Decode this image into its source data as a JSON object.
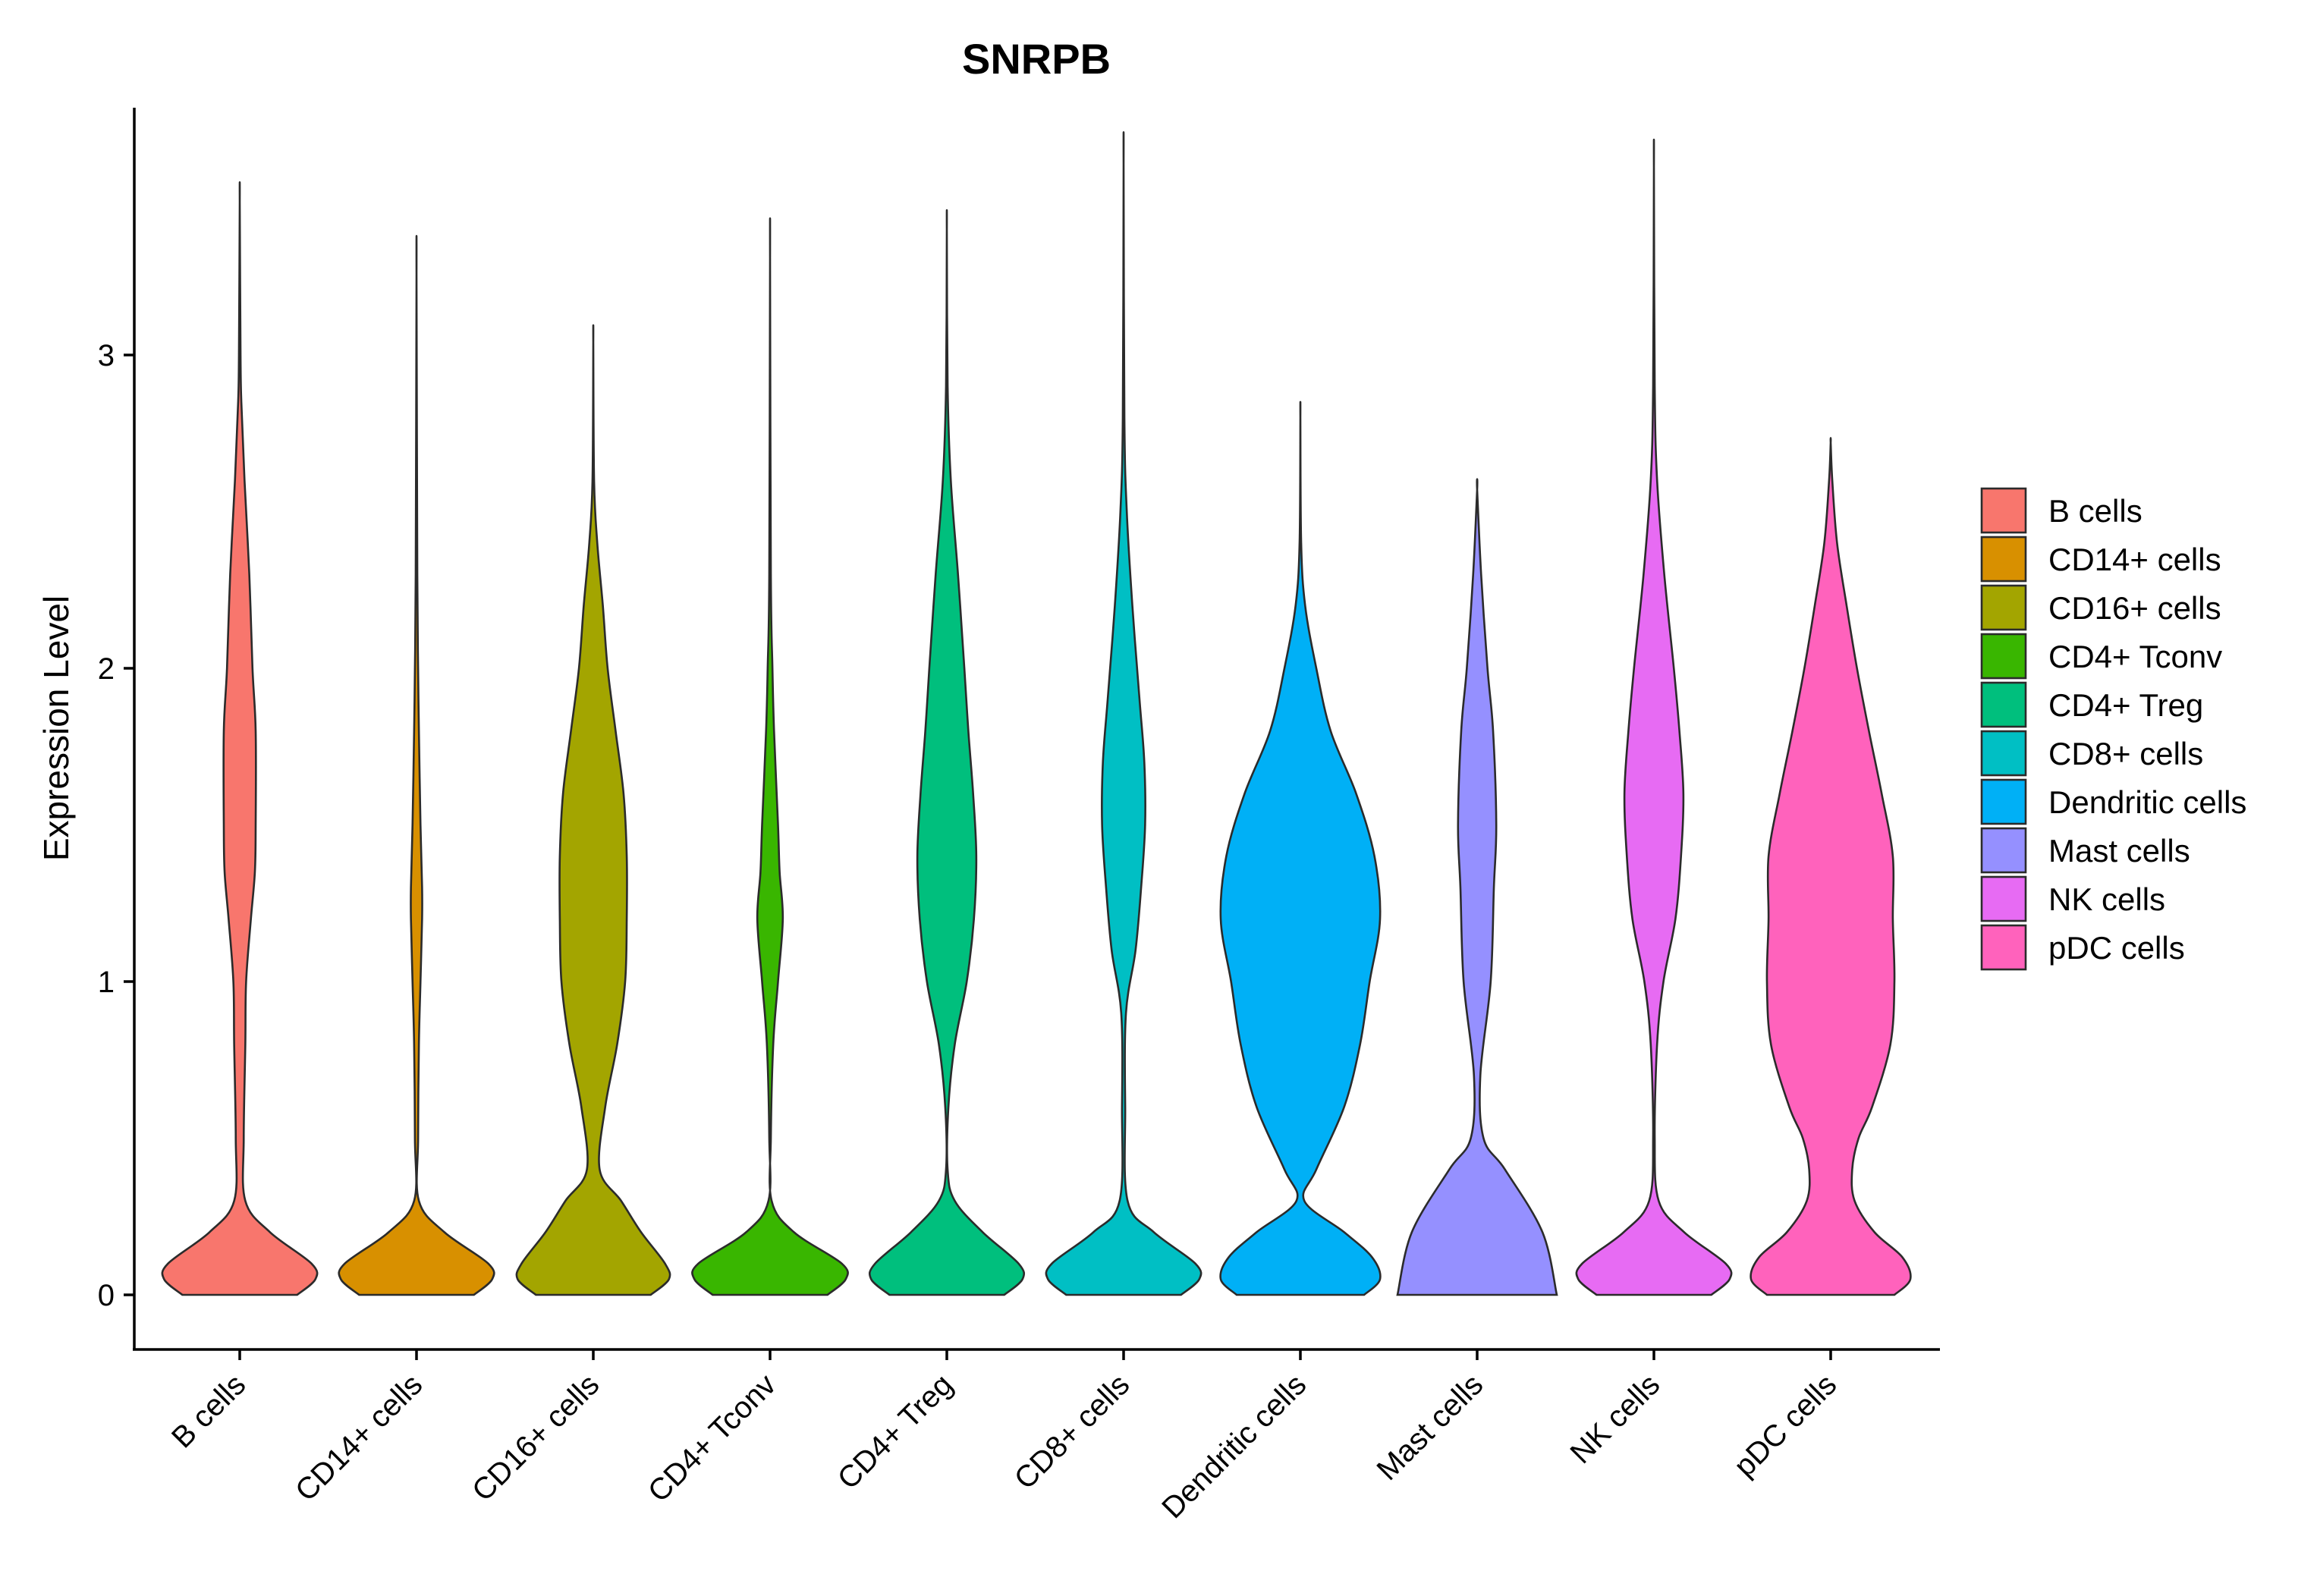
{
  "chart_data": {
    "type": "violin",
    "title": "SNRPB",
    "xlabel": "",
    "ylabel": "Expression Level",
    "ylim": [
      -0.18,
      3.8
    ],
    "yticks": [
      0,
      1,
      2,
      3
    ],
    "categories": [
      "B cells",
      "CD14+ cells",
      "CD16+ cells",
      "CD4+ Tconv",
      "CD4+ Treg",
      "CD8+ cells",
      "Dendritic cells",
      "Mast cells",
      "NK cells",
      "pDC cells"
    ],
    "legend_title": "",
    "legend_position": "right",
    "series": [
      {
        "name": "B cells",
        "color": "#F8766D",
        "max": 3.49,
        "profile": [
          [
            0,
            0.72
          ],
          [
            0.05,
            0.95
          ],
          [
            0.1,
            0.9
          ],
          [
            0.2,
            0.38
          ],
          [
            0.3,
            0.07
          ],
          [
            0.5,
            0.05
          ],
          [
            0.8,
            0.07
          ],
          [
            1.0,
            0.08
          ],
          [
            1.2,
            0.14
          ],
          [
            1.35,
            0.19
          ],
          [
            1.5,
            0.2
          ],
          [
            1.8,
            0.2
          ],
          [
            2.0,
            0.16
          ],
          [
            2.3,
            0.12
          ],
          [
            2.6,
            0.06
          ],
          [
            2.85,
            0.02
          ],
          [
            3.0,
            0.01
          ],
          [
            3.49,
            0.0
          ]
        ]
      },
      {
        "name": "CD14+ cells",
        "color": "#D89000",
        "max": 3.26,
        "profile": [
          [
            0,
            0.72
          ],
          [
            0.05,
            0.95
          ],
          [
            0.1,
            0.9
          ],
          [
            0.2,
            0.35
          ],
          [
            0.3,
            0.03
          ],
          [
            0.5,
            0.02
          ],
          [
            0.8,
            0.03
          ],
          [
            1.0,
            0.05
          ],
          [
            1.2,
            0.07
          ],
          [
            1.3,
            0.07
          ],
          [
            1.5,
            0.05
          ],
          [
            1.8,
            0.03
          ],
          [
            2.0,
            0.02
          ],
          [
            2.3,
            0.01
          ],
          [
            3.26,
            0.0
          ]
        ]
      },
      {
        "name": "CD16+ cells",
        "color": "#A3A500",
        "max": 3.04,
        "profile": [
          [
            0,
            0.72
          ],
          [
            0.05,
            0.95
          ],
          [
            0.1,
            0.9
          ],
          [
            0.2,
            0.6
          ],
          [
            0.3,
            0.35
          ],
          [
            0.4,
            0.08
          ],
          [
            0.6,
            0.15
          ],
          [
            0.8,
            0.3
          ],
          [
            1.0,
            0.4
          ],
          [
            1.2,
            0.42
          ],
          [
            1.4,
            0.42
          ],
          [
            1.6,
            0.38
          ],
          [
            1.8,
            0.28
          ],
          [
            2.0,
            0.18
          ],
          [
            2.2,
            0.12
          ],
          [
            2.4,
            0.05
          ],
          [
            2.6,
            0.01
          ],
          [
            3.04,
            0.0
          ]
        ]
      },
      {
        "name": "CD4+ Tconv",
        "color": "#39B600",
        "max": 3.31,
        "profile": [
          [
            0,
            0.72
          ],
          [
            0.05,
            0.95
          ],
          [
            0.1,
            0.9
          ],
          [
            0.2,
            0.3
          ],
          [
            0.3,
            0.02
          ],
          [
            0.5,
            0.01
          ],
          [
            0.8,
            0.04
          ],
          [
            1.0,
            0.1
          ],
          [
            1.2,
            0.16
          ],
          [
            1.35,
            0.12
          ],
          [
            1.5,
            0.1
          ],
          [
            1.8,
            0.05
          ],
          [
            2.0,
            0.03
          ],
          [
            2.3,
            0.01
          ],
          [
            3.31,
            0.0
          ]
        ]
      },
      {
        "name": "CD4+ Treg",
        "color": "#00BF7D",
        "max": 3.4,
        "profile": [
          [
            0,
            0.72
          ],
          [
            0.05,
            0.95
          ],
          [
            0.1,
            0.9
          ],
          [
            0.2,
            0.45
          ],
          [
            0.3,
            0.1
          ],
          [
            0.4,
            0.01
          ],
          [
            0.6,
            0.02
          ],
          [
            0.8,
            0.1
          ],
          [
            1.0,
            0.25
          ],
          [
            1.2,
            0.34
          ],
          [
            1.4,
            0.37
          ],
          [
            1.6,
            0.33
          ],
          [
            1.8,
            0.27
          ],
          [
            2.0,
            0.22
          ],
          [
            2.3,
            0.14
          ],
          [
            2.6,
            0.05
          ],
          [
            2.9,
            0.01
          ],
          [
            3.4,
            0.0
          ]
        ]
      },
      {
        "name": "CD8+ cells",
        "color": "#00BFC4",
        "max": 3.61,
        "profile": [
          [
            0,
            0.72
          ],
          [
            0.05,
            0.95
          ],
          [
            0.1,
            0.9
          ],
          [
            0.2,
            0.38
          ],
          [
            0.3,
            0.05
          ],
          [
            0.6,
            0.02
          ],
          [
            0.9,
            0.03
          ],
          [
            1.1,
            0.15
          ],
          [
            1.3,
            0.22
          ],
          [
            1.5,
            0.27
          ],
          [
            1.7,
            0.26
          ],
          [
            1.9,
            0.2
          ],
          [
            2.2,
            0.11
          ],
          [
            2.5,
            0.04
          ],
          [
            2.8,
            0.01
          ],
          [
            3.61,
            0.0
          ]
        ]
      },
      {
        "name": "Dendritic cells",
        "color": "#00B0F6",
        "max": 2.8,
        "profile": [
          [
            0,
            0.8
          ],
          [
            0.05,
            1.0
          ],
          [
            0.12,
            0.9
          ],
          [
            0.2,
            0.55
          ],
          [
            0.3,
            0.05
          ],
          [
            0.4,
            0.2
          ],
          [
            0.6,
            0.55
          ],
          [
            0.8,
            0.75
          ],
          [
            1.0,
            0.87
          ],
          [
            1.2,
            1.0
          ],
          [
            1.4,
            0.93
          ],
          [
            1.6,
            0.7
          ],
          [
            1.8,
            0.38
          ],
          [
            2.0,
            0.2
          ],
          [
            2.2,
            0.06
          ],
          [
            2.4,
            0.01
          ],
          [
            2.8,
            0.0
          ]
        ]
      },
      {
        "name": "Mast cells",
        "color": "#9590FF",
        "max": 2.57,
        "profile": [
          [
            0,
            1.0
          ],
          [
            0.2,
            0.82
          ],
          [
            0.4,
            0.35
          ],
          [
            0.5,
            0.08
          ],
          [
            0.7,
            0.04
          ],
          [
            1.0,
            0.17
          ],
          [
            1.3,
            0.21
          ],
          [
            1.5,
            0.24
          ],
          [
            1.8,
            0.2
          ],
          [
            2.0,
            0.13
          ],
          [
            2.3,
            0.05
          ],
          [
            2.57,
            0.0
          ]
        ]
      },
      {
        "name": "NK cells",
        "color": "#E76BF3",
        "max": 3.6,
        "profile": [
          [
            0,
            0.72
          ],
          [
            0.05,
            0.95
          ],
          [
            0.1,
            0.9
          ],
          [
            0.2,
            0.38
          ],
          [
            0.3,
            0.06
          ],
          [
            0.5,
            0.01
          ],
          [
            0.8,
            0.04
          ],
          [
            1.0,
            0.12
          ],
          [
            1.2,
            0.27
          ],
          [
            1.4,
            0.34
          ],
          [
            1.6,
            0.37
          ],
          [
            1.8,
            0.32
          ],
          [
            2.0,
            0.25
          ],
          [
            2.3,
            0.13
          ],
          [
            2.6,
            0.04
          ],
          [
            2.9,
            0.01
          ],
          [
            3.6,
            0.0
          ]
        ]
      },
      {
        "name": "pDC cells",
        "color": "#FF62BC",
        "max": 2.72,
        "profile": [
          [
            0,
            0.8
          ],
          [
            0.05,
            1.0
          ],
          [
            0.12,
            0.9
          ],
          [
            0.2,
            0.55
          ],
          [
            0.3,
            0.3
          ],
          [
            0.4,
            0.27
          ],
          [
            0.5,
            0.35
          ],
          [
            0.6,
            0.52
          ],
          [
            0.8,
            0.75
          ],
          [
            1.0,
            0.8
          ],
          [
            1.2,
            0.78
          ],
          [
            1.4,
            0.78
          ],
          [
            1.6,
            0.64
          ],
          [
            1.8,
            0.48
          ],
          [
            2.0,
            0.33
          ],
          [
            2.2,
            0.2
          ],
          [
            2.4,
            0.08
          ],
          [
            2.6,
            0.02
          ],
          [
            2.72,
            0.0
          ]
        ]
      }
    ]
  }
}
